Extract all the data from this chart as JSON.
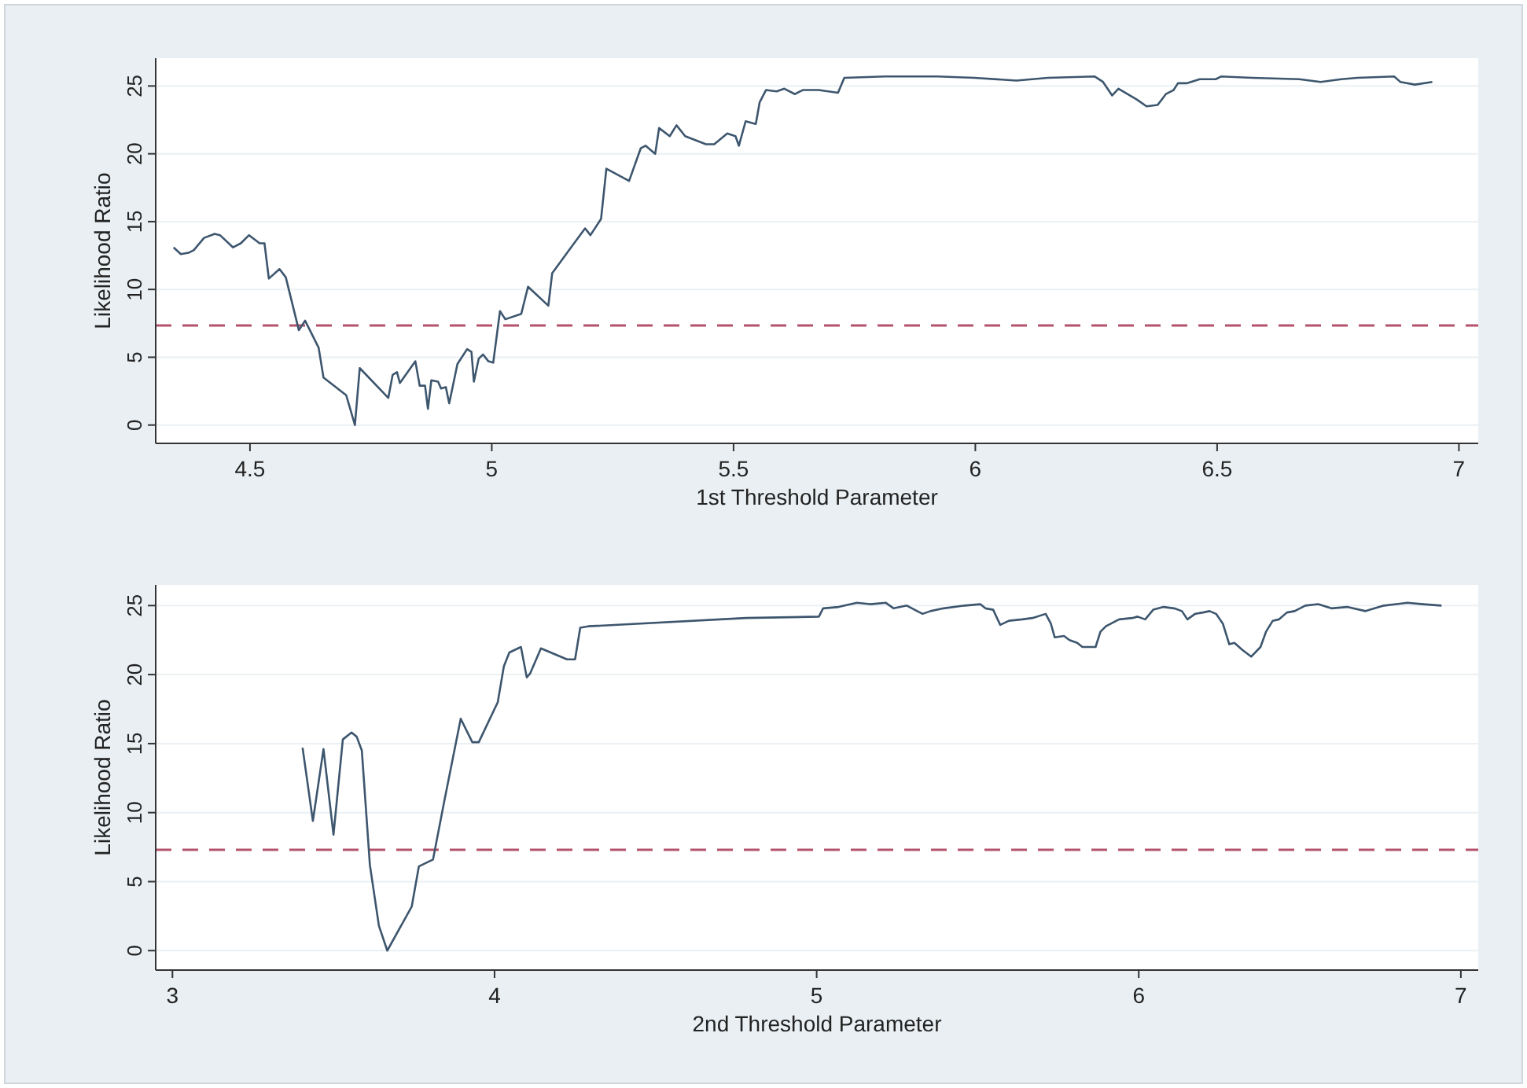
{
  "chart_data": [
    {
      "type": "line",
      "xlabel": "1st Threshold Parameter",
      "ylabel": "Likelihood Ratio",
      "xlim": [
        4.305,
        7.04
      ],
      "ylim": [
        -1.35,
        27.05
      ],
      "xticks": [
        {
          "value": 4.5,
          "label": "4.5"
        },
        {
          "value": 5,
          "label": "5"
        },
        {
          "value": 5.5,
          "label": "5.5"
        },
        {
          "value": 6,
          "label": "6"
        },
        {
          "value": 6.5,
          "label": "6.5"
        },
        {
          "value": 7,
          "label": "7"
        }
      ],
      "yticks": [
        0,
        5,
        10,
        15,
        20,
        25
      ],
      "grid": "y",
      "marker": "none",
      "line_style": "solid",
      "ref_lines": [
        {
          "axis": "y",
          "value": 7.35,
          "color": "#b5526b",
          "line_style": "dashed"
        }
      ],
      "series": [
        {
          "color": "#3d566e",
          "x": [
            4.342,
            4.357,
            4.373,
            4.384,
            4.405,
            4.427,
            4.438,
            4.465,
            4.481,
            4.498,
            4.52,
            4.53,
            4.539,
            4.561,
            4.574,
            4.601,
            4.614,
            4.642,
            4.652,
            4.699,
            4.717,
            4.727,
            4.786,
            4.795,
            4.804,
            4.81,
            4.842,
            4.851,
            4.862,
            4.868,
            4.875,
            4.889,
            4.895,
            4.905,
            4.912,
            4.929,
            4.949,
            4.958,
            4.963,
            4.973,
            4.982,
            4.993,
            5.003,
            5.017,
            5.028,
            5.061,
            5.075,
            5.117,
            5.125,
            5.166,
            5.193,
            5.204,
            5.226,
            5.237,
            5.284,
            5.308,
            5.318,
            5.338,
            5.346,
            5.368,
            5.382,
            5.4,
            5.443,
            5.46,
            5.487,
            5.504,
            5.511,
            5.525,
            5.546,
            5.554,
            5.567,
            5.589,
            5.605,
            5.627,
            5.643,
            5.676,
            5.716,
            5.729,
            5.813,
            5.922,
            5.998,
            6.085,
            6.15,
            6.247,
            6.264,
            6.283,
            6.296,
            6.334,
            6.354,
            6.377,
            6.394,
            6.41,
            6.419,
            6.437,
            6.464,
            6.497,
            6.508,
            6.573,
            6.67,
            6.714,
            6.757,
            6.79,
            6.866,
            6.879,
            6.909,
            6.945
          ],
          "values": [
            13.1,
            12.6,
            12.7,
            12.9,
            13.8,
            14.1,
            14.0,
            13.1,
            13.4,
            14.0,
            13.4,
            13.4,
            10.8,
            11.5,
            10.9,
            7.0,
            7.7,
            5.7,
            3.5,
            2.2,
            0,
            4.2,
            2.0,
            3.7,
            3.9,
            3.1,
            4.7,
            2.9,
            2.9,
            1.2,
            3.3,
            3.2,
            2.7,
            2.8,
            1.6,
            4.5,
            5.6,
            5.4,
            3.2,
            4.9,
            5.2,
            4.7,
            4.6,
            8.4,
            7.8,
            8.2,
            10.2,
            8.8,
            11.2,
            13.2,
            14.5,
            14.0,
            15.2,
            18.9,
            18.0,
            20.4,
            20.6,
            20.0,
            21.9,
            21.3,
            22.1,
            21.3,
            20.7,
            20.7,
            21.5,
            21.3,
            20.6,
            22.4,
            22.2,
            23.8,
            24.7,
            24.6,
            24.8,
            24.4,
            24.7,
            24.7,
            24.5,
            25.6,
            25.7,
            25.7,
            25.6,
            25.4,
            25.6,
            25.7,
            25.3,
            24.3,
            24.8,
            24.0,
            23.5,
            23.6,
            24.4,
            24.7,
            25.2,
            25.2,
            25.5,
            25.5,
            25.7,
            25.6,
            25.5,
            25.3,
            25.5,
            25.6,
            25.7,
            25.3,
            25.1,
            25.3
          ]
        }
      ]
    },
    {
      "type": "line",
      "xlabel": "2nd Threshold Parameter",
      "ylabel": "Likelihood Ratio",
      "xlim": [
        2.948,
        7.054
      ],
      "ylim": [
        -1.41,
        26.5
      ],
      "xticks": [
        3,
        4,
        5,
        6,
        7
      ],
      "yticks": [
        0,
        5,
        10,
        15,
        20,
        25
      ],
      "grid": "y",
      "marker": "none",
      "line_style": "solid",
      "ref_lines": [
        {
          "axis": "y",
          "value": 7.3,
          "color": "#b5526b",
          "line_style": "dashed"
        }
      ],
      "series": [
        {
          "color": "#3d566e",
          "x": [
            3.404,
            3.436,
            3.469,
            3.5,
            3.529,
            3.556,
            3.572,
            3.588,
            3.613,
            3.641,
            3.667,
            3.743,
            3.765,
            3.809,
            3.842,
            3.895,
            3.931,
            3.951,
            4.01,
            4.029,
            4.046,
            4.082,
            4.1,
            4.111,
            4.144,
            4.225,
            4.25,
            4.266,
            4.291,
            4.781,
            5.007,
            5.02,
            5.068,
            5.125,
            5.166,
            5.215,
            5.239,
            5.28,
            5.304,
            5.329,
            5.353,
            5.394,
            5.459,
            5.508,
            5.524,
            5.548,
            5.57,
            5.597,
            5.638,
            5.67,
            5.711,
            5.727,
            5.739,
            5.768,
            5.785,
            5.809,
            5.825,
            5.866,
            5.881,
            5.898,
            5.939,
            5.98,
            5.996,
            6.02,
            6.045,
            6.077,
            6.11,
            6.134,
            6.151,
            6.175,
            6.199,
            6.22,
            6.24,
            6.261,
            6.281,
            6.297,
            6.321,
            6.349,
            6.378,
            6.395,
            6.416,
            6.435,
            6.46,
            6.484,
            6.517,
            6.557,
            6.598,
            6.647,
            6.704,
            6.761,
            6.834,
            6.883,
            6.94
          ],
          "values": [
            14.7,
            9.4,
            14.6,
            8.4,
            15.3,
            15.8,
            15.5,
            14.5,
            6.2,
            1.8,
            0,
            3.2,
            6.1,
            6.6,
            10.6,
            16.8,
            15.1,
            15.1,
            18.0,
            20.6,
            21.6,
            22.0,
            19.8,
            20.1,
            21.9,
            21.1,
            21.1,
            23.4,
            23.5,
            24.1,
            24.2,
            24.8,
            24.9,
            25.2,
            25.1,
            25.2,
            24.8,
            25.0,
            24.7,
            24.4,
            24.6,
            24.8,
            25.0,
            25.1,
            24.8,
            24.7,
            23.6,
            23.9,
            24.0,
            24.1,
            24.4,
            23.7,
            22.7,
            22.8,
            22.5,
            22.3,
            22.0,
            22.0,
            23.1,
            23.5,
            24.0,
            24.1,
            24.2,
            24.0,
            24.7,
            24.9,
            24.8,
            24.6,
            24.0,
            24.4,
            24.5,
            24.6,
            24.4,
            23.7,
            22.2,
            22.3,
            21.8,
            21.3,
            22.0,
            23.1,
            23.9,
            24.0,
            24.5,
            24.6,
            25.0,
            25.1,
            24.8,
            24.9,
            24.6,
            25.0,
            25.2,
            25.1,
            25.0
          ]
        }
      ]
    }
  ]
}
